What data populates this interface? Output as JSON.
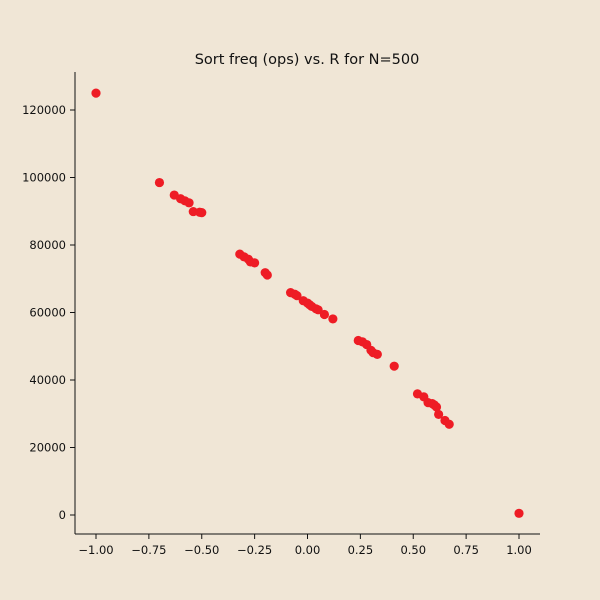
{
  "chart_data": {
    "type": "scatter",
    "title": "Sort freq (ops) vs. R for N=500",
    "xlabel": "",
    "ylabel": "",
    "xlim": [
      -1.1,
      1.1
    ],
    "ylim": [
      -5000,
      131000
    ],
    "xticks": [
      -1.0,
      -0.75,
      -0.5,
      -0.25,
      0.0,
      0.25,
      0.5,
      0.75,
      1.0
    ],
    "xtick_labels": [
      "−1.00",
      "−0.75",
      "−0.50",
      "−0.25",
      "0.00",
      "0.25",
      "0.50",
      "0.75",
      "1.00"
    ],
    "yticks": [
      0,
      20000,
      40000,
      60000,
      80000,
      100000,
      120000
    ],
    "ytick_labels": [
      "0",
      "20000",
      "40000",
      "60000",
      "80000",
      "100000",
      "120000"
    ],
    "grid": false,
    "marker_color": "#ee1c25",
    "series": [
      {
        "points": [
          [
            -1.0,
            125000
          ],
          [
            -0.7,
            98500
          ],
          [
            -0.63,
            94800
          ],
          [
            -0.6,
            93700
          ],
          [
            -0.58,
            93100
          ],
          [
            -0.56,
            92500
          ],
          [
            -0.54,
            89900
          ],
          [
            -0.51,
            89700
          ],
          [
            -0.5,
            89600
          ],
          [
            -0.32,
            77300
          ],
          [
            -0.3,
            76500
          ],
          [
            -0.28,
            75800
          ],
          [
            -0.27,
            75000
          ],
          [
            -0.25,
            74700
          ],
          [
            -0.2,
            71800
          ],
          [
            -0.19,
            71100
          ],
          [
            -0.08,
            65900
          ],
          [
            -0.06,
            65400
          ],
          [
            -0.05,
            65000
          ],
          [
            -0.02,
            63500
          ],
          [
            0.0,
            62800
          ],
          [
            0.01,
            62300
          ],
          [
            0.02,
            61800
          ],
          [
            0.04,
            61100
          ],
          [
            0.05,
            60800
          ],
          [
            0.08,
            59400
          ],
          [
            0.12,
            58100
          ],
          [
            0.24,
            51700
          ],
          [
            0.26,
            51300
          ],
          [
            0.28,
            50500
          ],
          [
            0.3,
            48800
          ],
          [
            0.31,
            48100
          ],
          [
            0.33,
            47600
          ],
          [
            0.41,
            44100
          ],
          [
            0.52,
            35900
          ],
          [
            0.55,
            35000
          ],
          [
            0.57,
            33300
          ],
          [
            0.59,
            33000
          ],
          [
            0.6,
            32600
          ],
          [
            0.61,
            32000
          ],
          [
            0.62,
            29800
          ],
          [
            0.65,
            28000
          ],
          [
            0.67,
            26900
          ],
          [
            1.0,
            500
          ]
        ]
      }
    ]
  }
}
